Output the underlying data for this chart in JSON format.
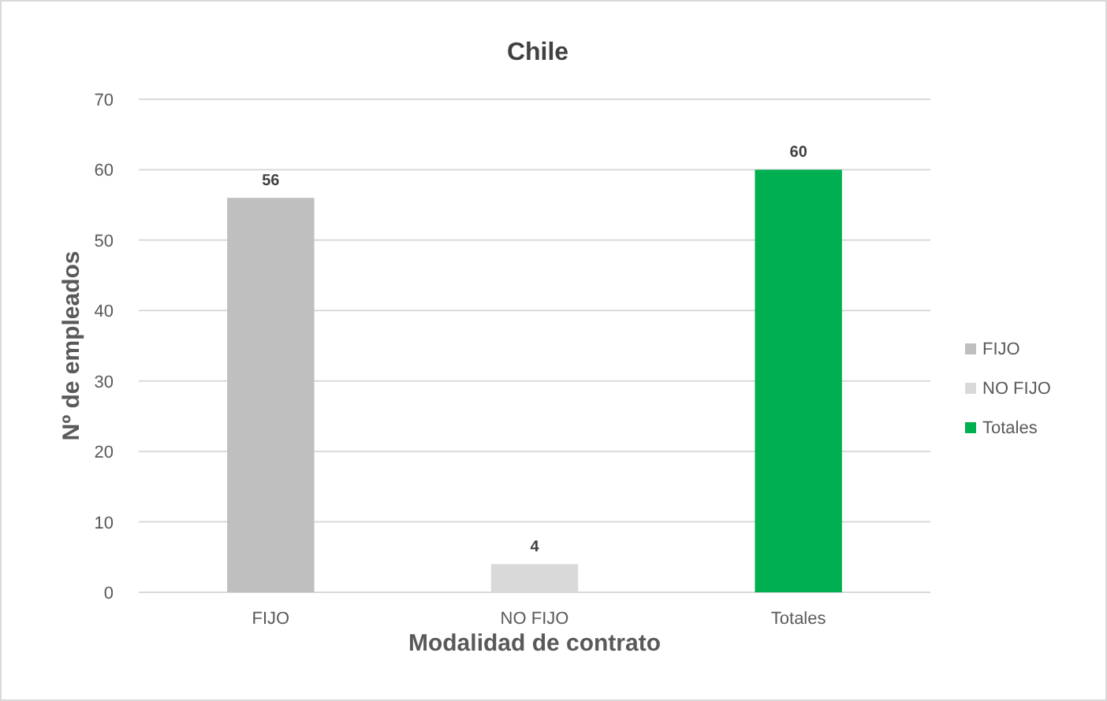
{
  "chart_data": {
    "type": "bar",
    "title": "Chile",
    "xlabel": "Modalidad de contrato",
    "ylabel": "Nº de empleados",
    "categories": [
      "FIJO",
      "NO FIJO",
      "Totales"
    ],
    "series": [
      {
        "name": "FIJO",
        "color": "#bfbfbf",
        "values": [
          56,
          null,
          null
        ]
      },
      {
        "name": "NO FIJO",
        "color": "#d9d9d9",
        "values": [
          null,
          4,
          null
        ]
      },
      {
        "name": "Totales",
        "color": "#00b050",
        "values": [
          null,
          null,
          60
        ]
      }
    ],
    "ylim": [
      0,
      70
    ],
    "yticks": [
      0,
      10,
      20,
      30,
      40,
      50,
      60,
      70
    ],
    "grid": "y",
    "legend": "right",
    "data_labels": true
  }
}
